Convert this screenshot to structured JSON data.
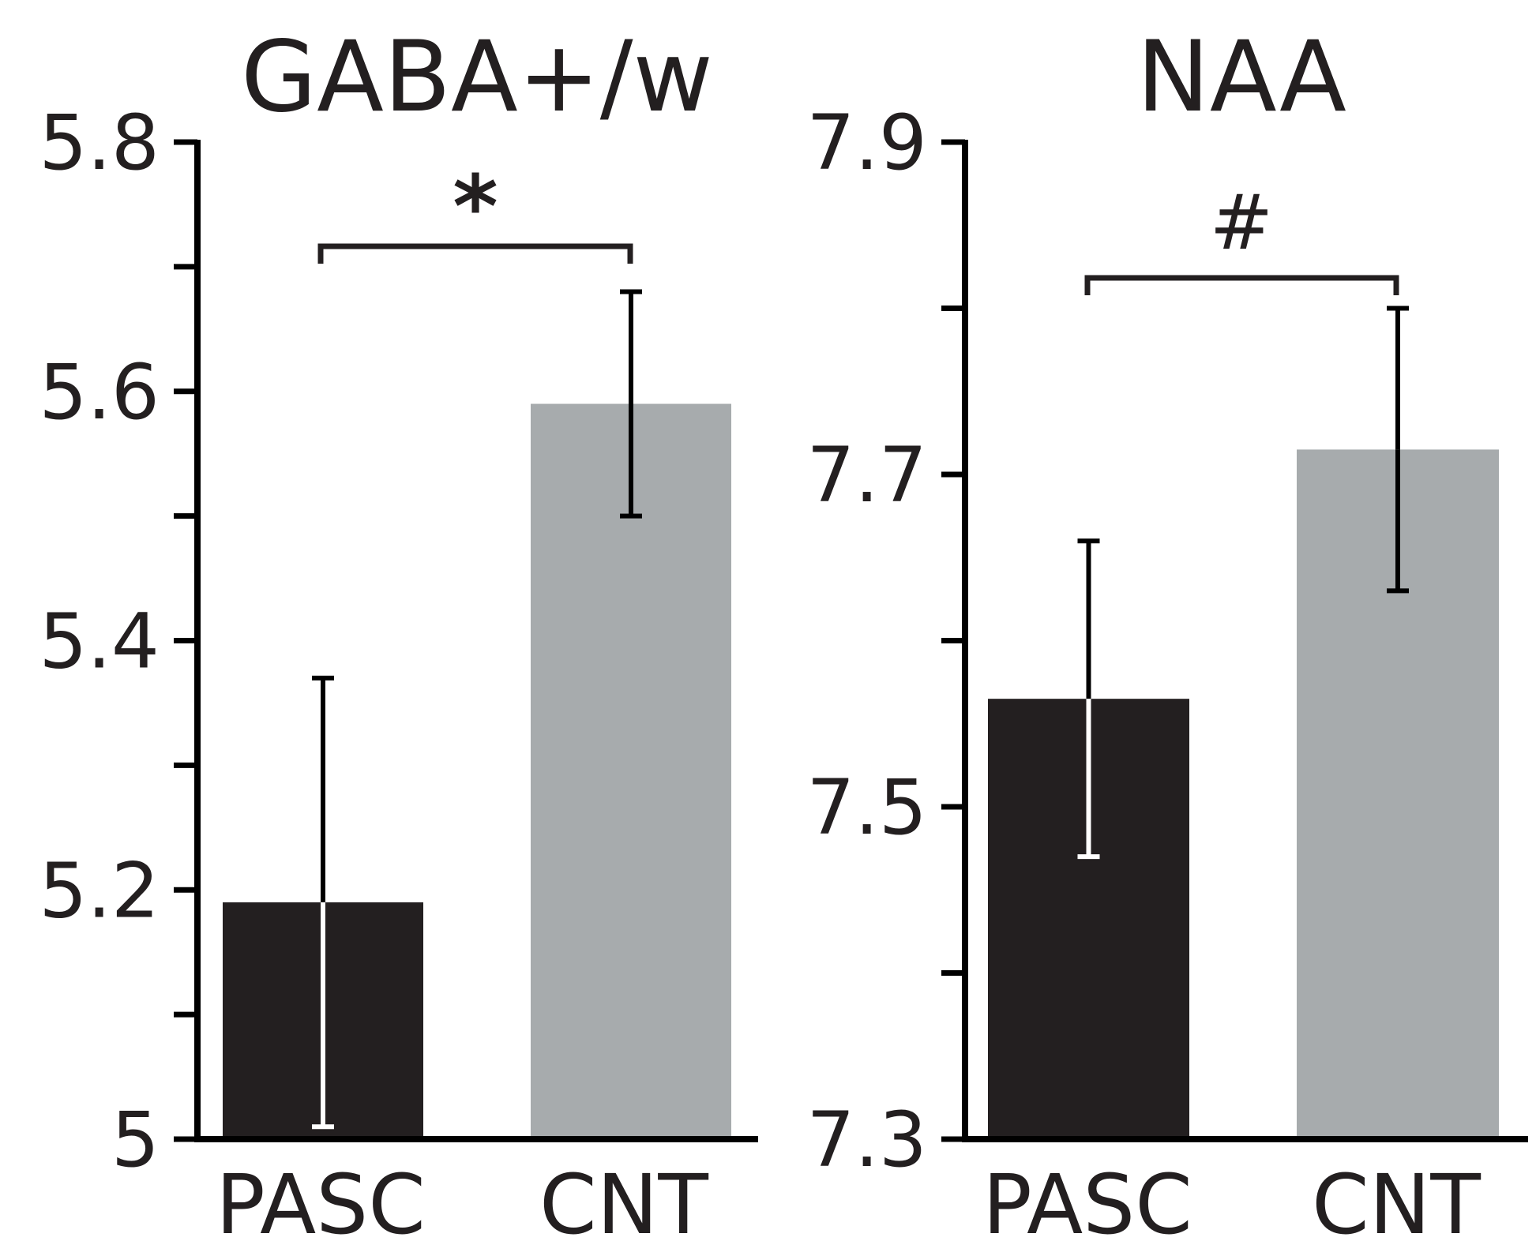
{
  "chart_data": [
    {
      "type": "bar",
      "title": "GABA+/w",
      "categories": [
        "PASC",
        "CNT"
      ],
      "values": [
        5.19,
        5.59
      ],
      "errors": [
        0.18,
        0.09
      ],
      "colors": [
        "#231f20",
        "#a7abad"
      ],
      "ylim": [
        5,
        5.8
      ],
      "yticks": [
        5,
        5.2,
        5.4,
        5.6,
        5.8
      ],
      "ytick_labels": [
        "5",
        "5.2",
        "5.4",
        "5.6",
        "5.8"
      ],
      "minor_ticks": [
        5.1,
        5.3,
        5.5,
        5.7
      ],
      "significance": "*",
      "xlabel": "",
      "ylabel": ""
    },
    {
      "type": "bar",
      "title": "NAA",
      "categories": [
        "PASC",
        "CNT"
      ],
      "values": [
        7.565,
        7.715
      ],
      "errors": [
        0.095,
        0.085
      ],
      "colors": [
        "#231f20",
        "#a7abad"
      ],
      "ylim": [
        7.3,
        7.9
      ],
      "yticks": [
        7.3,
        7.5,
        7.7,
        7.9
      ],
      "ytick_labels": [
        "7.3",
        "7.5",
        "7.7",
        "7.9"
      ],
      "minor_ticks": [
        7.4,
        7.6,
        7.8
      ],
      "significance": "#",
      "xlabel": "",
      "ylabel": ""
    }
  ]
}
